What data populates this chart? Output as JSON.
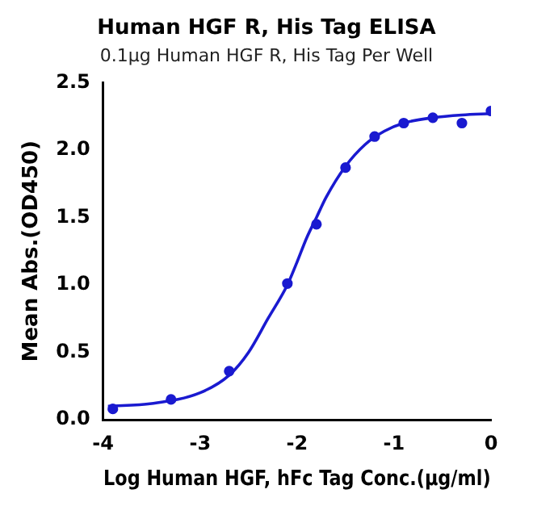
{
  "chart_data": {
    "type": "scatter",
    "title": "Human HGF R, His Tag ELISA",
    "subtitle": "0.1μg Human HGF R, His Tag Per Well",
    "xlabel": "Log Human HGF, hFc Tag Conc.(μg/ml)",
    "ylabel": "Mean Abs.(OD450)",
    "xlim": [
      -4,
      0
    ],
    "xticks": [
      -4,
      -3,
      -2,
      -1,
      0
    ],
    "ylim": [
      0,
      2.5
    ],
    "yticks": [
      {
        "value": 0,
        "label": "0.0"
      },
      {
        "value": 0.5,
        "label": "0.5"
      },
      {
        "value": 1,
        "label": "1.0"
      },
      {
        "value": 1.5,
        "label": "1.5"
      },
      {
        "value": 2,
        "label": "2.0"
      },
      {
        "value": 2.5,
        "label": "2.5"
      }
    ],
    "grid": false,
    "legend": false,
    "marker": "circle",
    "series": [
      {
        "type": "scatter",
        "color": "#1a1ad0",
        "x": [
          -3.9,
          -3.3,
          -2.7,
          -2.1,
          -1.8,
          -1.5,
          -1.2,
          -0.9,
          -0.6,
          -0.3,
          0
        ],
        "values": [
          0.08,
          0.15,
          0.36,
          1.01,
          1.45,
          1.87,
          2.1,
          2.2,
          2.24,
          2.2,
          2.29
        ]
      },
      {
        "type": "line",
        "marker": "none",
        "color": "#1a1ad0",
        "x": [
          -3.95,
          -3.5,
          -3,
          -2.7,
          -2.5,
          -2.3,
          -2.1,
          -2,
          -1.9,
          -1.8,
          -1.7,
          -1.5,
          -1.3,
          -1.1,
          -0.9,
          -0.6,
          -0.3,
          0
        ],
        "values": [
          0.1,
          0.12,
          0.2,
          0.33,
          0.5,
          0.75,
          1.0,
          1.17,
          1.35,
          1.5,
          1.65,
          1.88,
          2.04,
          2.14,
          2.2,
          2.24,
          2.26,
          2.27
        ]
      }
    ]
  }
}
